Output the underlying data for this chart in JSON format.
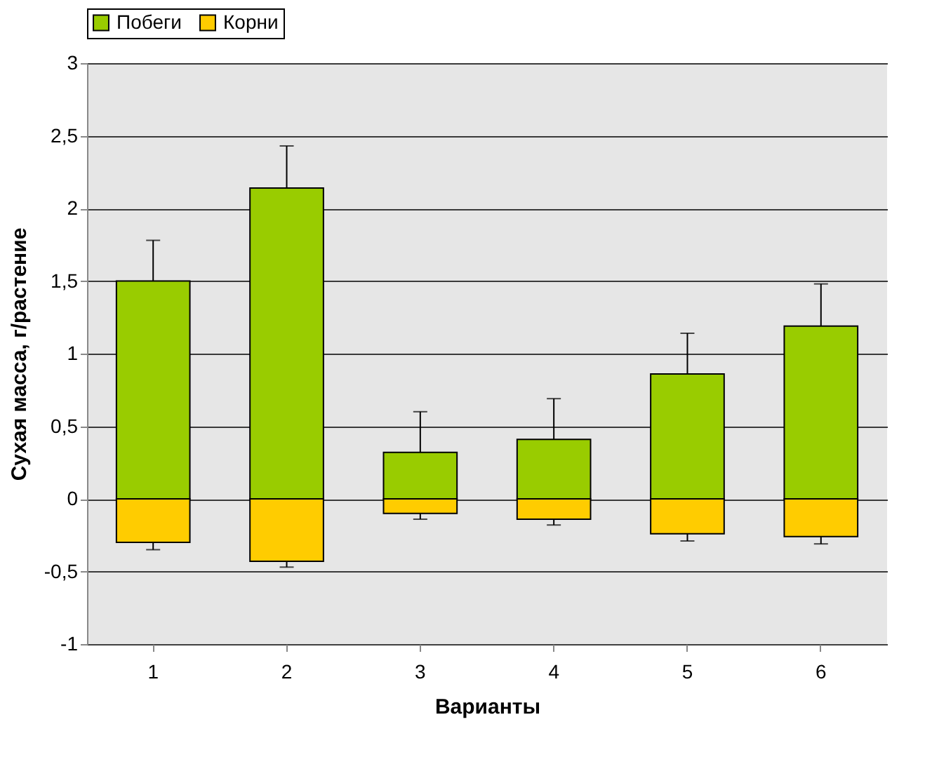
{
  "chart_data": {
    "type": "bar",
    "xlabel": "Варианты",
    "ylabel": "Сухая масса, г/растение",
    "categories": [
      "1",
      "2",
      "3",
      "4",
      "5",
      "6"
    ],
    "stacked": true,
    "series": [
      {
        "name": "Побеги",
        "color": "#99cc00",
        "values": [
          1.5,
          2.14,
          0.32,
          0.41,
          0.86,
          1.19
        ],
        "errors": [
          [
            1.5,
            1.78
          ],
          [
            2.14,
            2.43
          ],
          [
            0.32,
            0.6
          ],
          [
            0.41,
            0.69
          ],
          [
            0.86,
            1.14
          ],
          [
            1.19,
            1.48
          ]
        ]
      },
      {
        "name": "Корни",
        "color": "#ffcc00",
        "values": [
          -0.3,
          -0.43,
          -0.1,
          -0.14,
          -0.24,
          -0.26
        ],
        "errors": [
          [
            -0.35,
            -0.3
          ],
          [
            -0.47,
            -0.43
          ],
          [
            -0.14,
            -0.1
          ],
          [
            -0.18,
            -0.14
          ],
          [
            -0.29,
            -0.24
          ],
          [
            -0.31,
            -0.26
          ]
        ]
      }
    ],
    "ylim": [
      -1,
      3
    ],
    "yticks": [
      {
        "value": -1,
        "label": "-1"
      },
      {
        "value": -0.5,
        "label": "-0,5"
      },
      0,
      {
        "value": 0.5,
        "label": "0,5"
      },
      1,
      {
        "value": 1.5,
        "label": "1,5"
      },
      2,
      {
        "value": 2.5,
        "label": "2,5"
      },
      3
    ],
    "grid": "y",
    "legend": "top"
  }
}
